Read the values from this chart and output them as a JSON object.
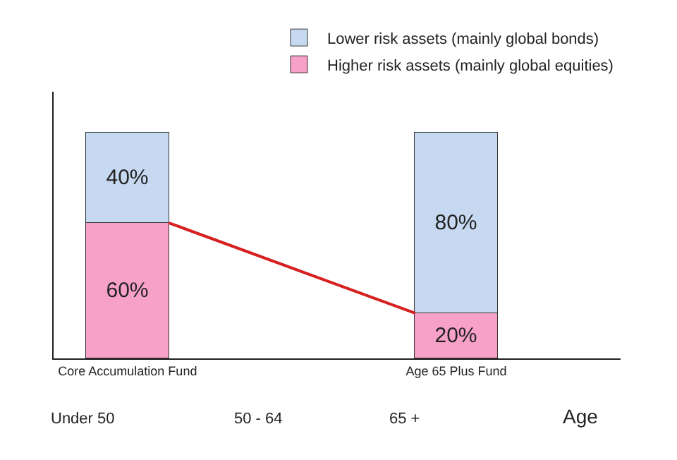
{
  "chart_data": {
    "type": "bar",
    "stacked": true,
    "categories": [
      "Core Accumulation Fund",
      null,
      null,
      null,
      null,
      null,
      null,
      null,
      "Age 65 Plus Fund"
    ],
    "series": [
      {
        "name": "Higher risk assets (mainly global equities)",
        "color": "#f7a1c8",
        "values": [
          60,
          null,
          null,
          null,
          null,
          null,
          null,
          null,
          20
        ],
        "value_labels": [
          "60%",
          null,
          null,
          null,
          null,
          null,
          null,
          null,
          "20%"
        ]
      },
      {
        "name": "Lower risk assets (mainly global bonds)",
        "color": "#c6d9f0",
        "values": [
          40,
          null,
          null,
          null,
          null,
          null,
          null,
          null,
          80
        ],
        "value_labels": [
          "40%",
          null,
          null,
          null,
          null,
          null,
          null,
          null,
          "80%"
        ]
      },
      {
        "type": "line",
        "color": "#d62020",
        "values": [
          null,
          60,
          null,
          null,
          null,
          null,
          null,
          20,
          null
        ]
      }
    ],
    "annotations": [
      "Under 50",
      "50 - 64",
      "65 +",
      "Age"
    ],
    "legend": "top right",
    "tick_labels": "x"
  }
}
